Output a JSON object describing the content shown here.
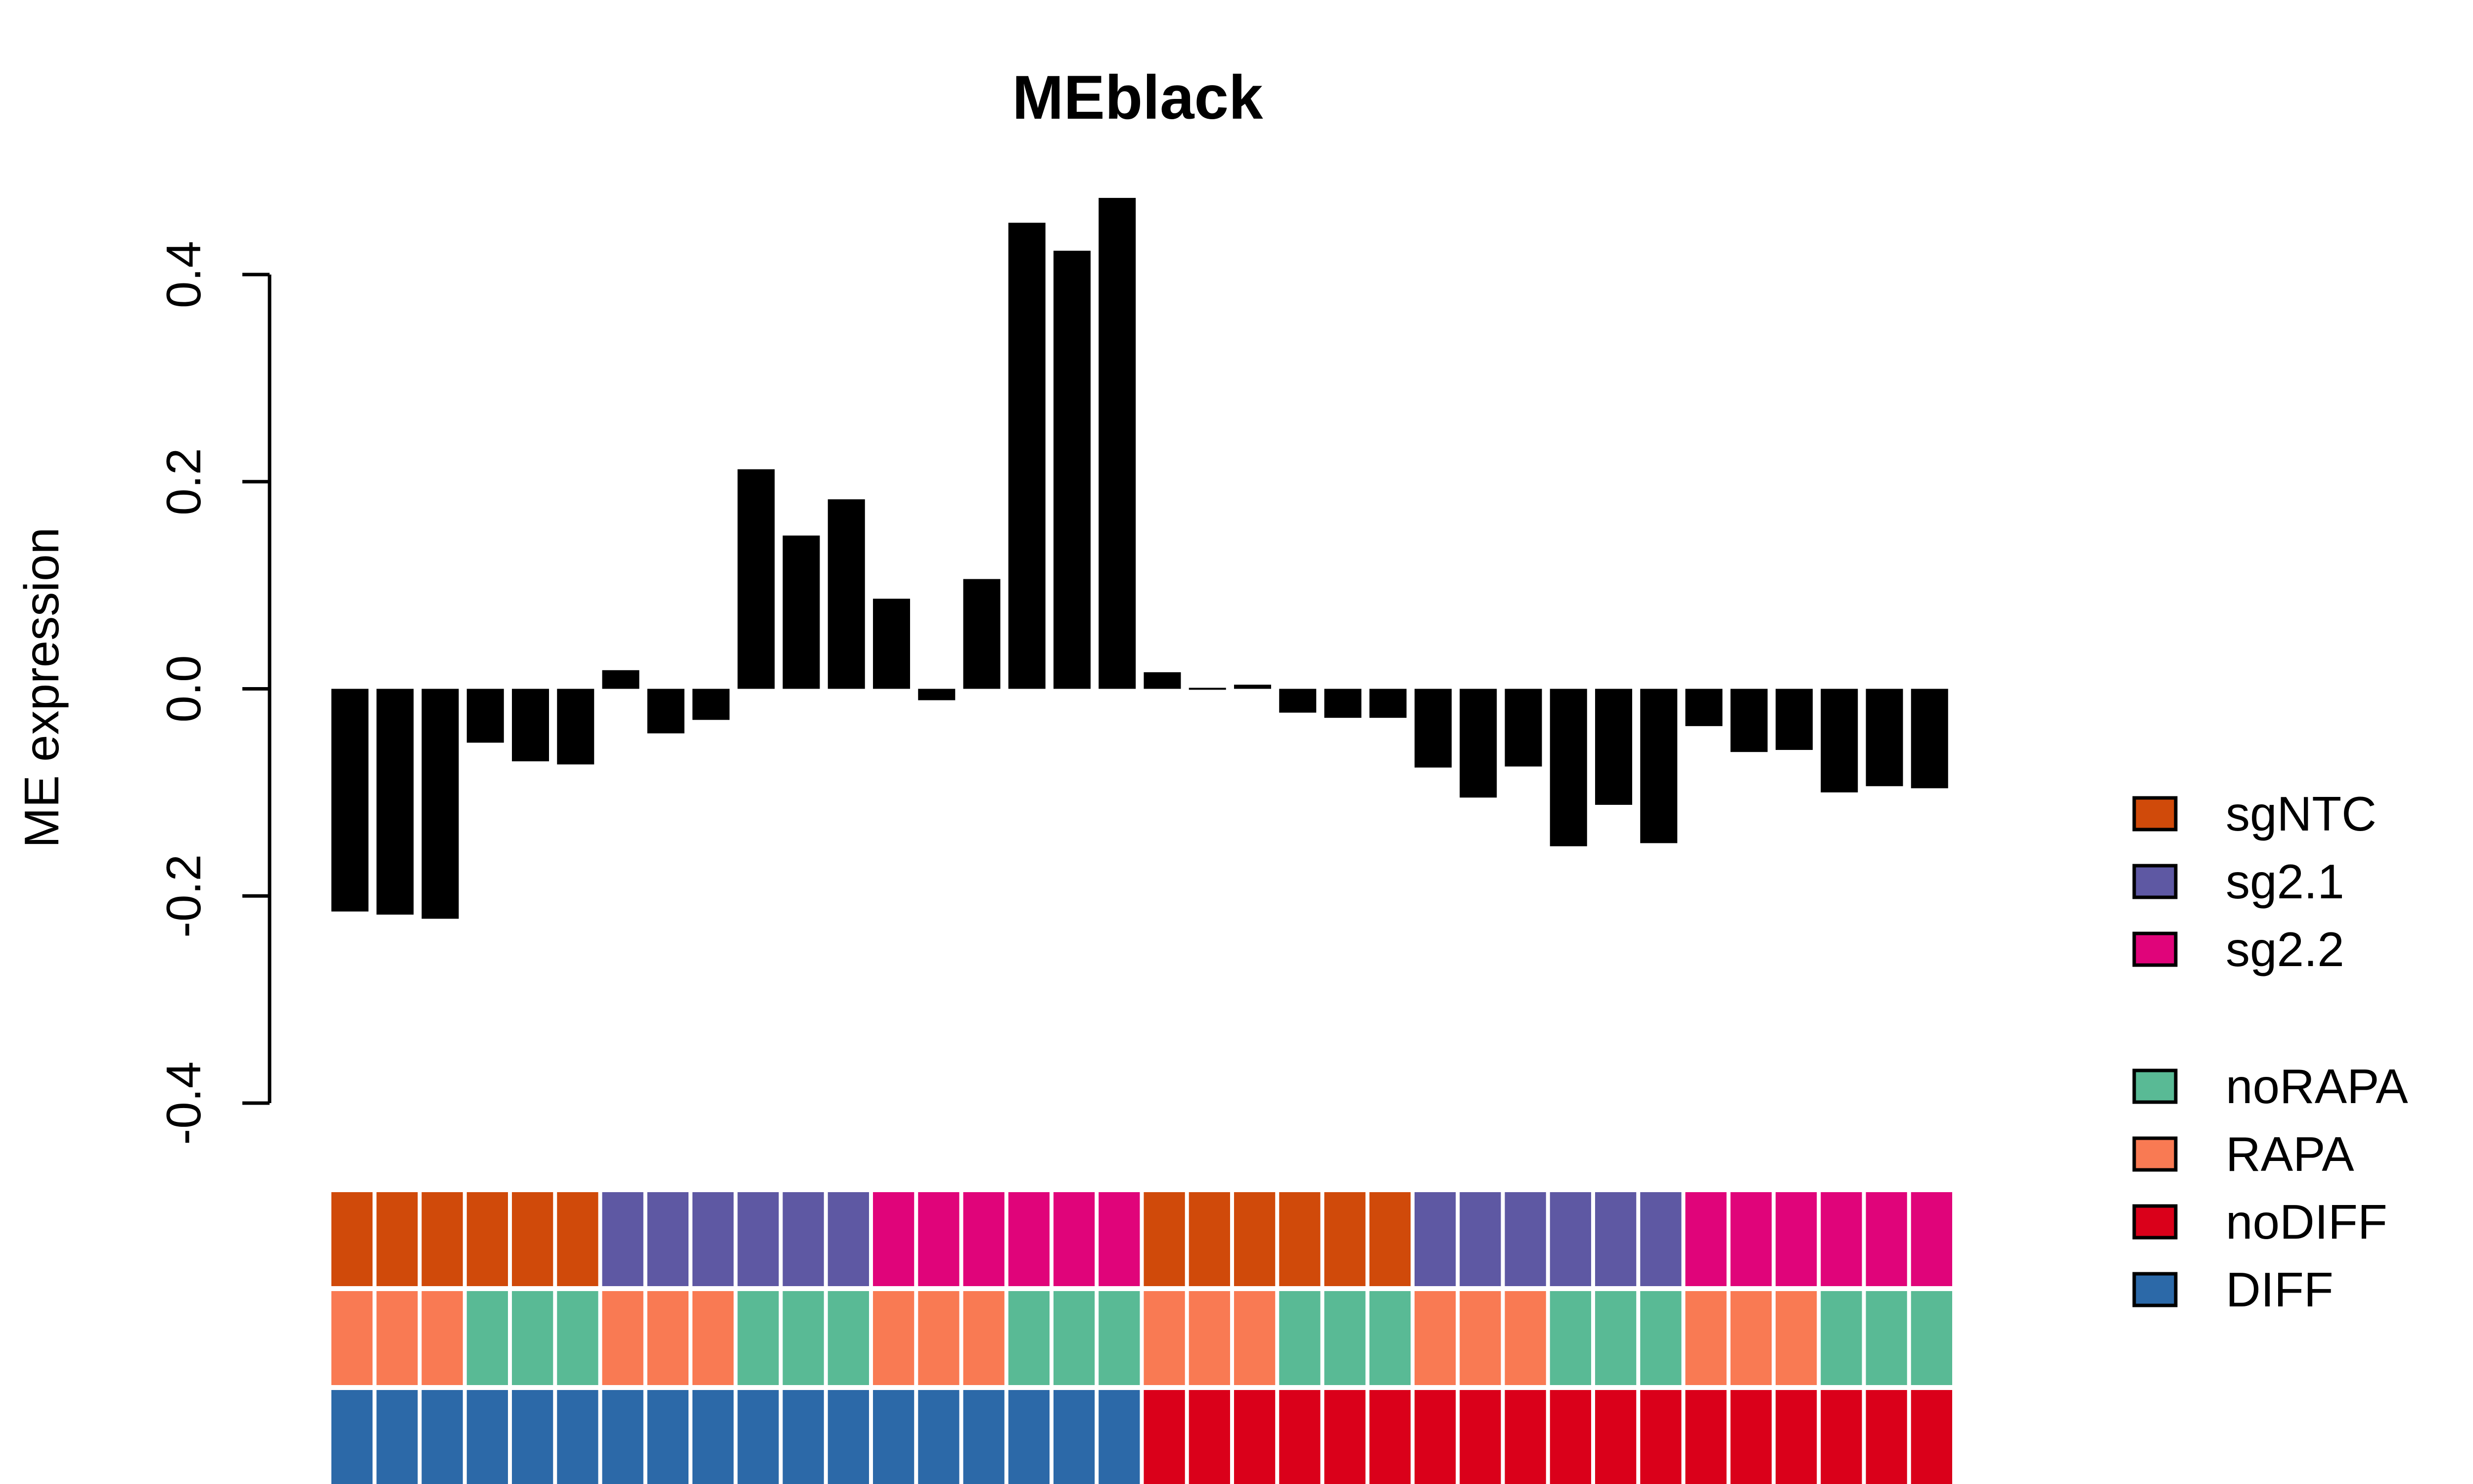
{
  "chart_data": {
    "type": "bar",
    "title": "MEblack",
    "xlabel": "",
    "ylabel": "ME expression",
    "ylim": [
      -0.4,
      0.4
    ],
    "yticks": [
      -0.4,
      -0.2,
      0.0,
      0.2,
      0.4
    ],
    "ytick_labels": [
      "-0.4",
      "-0.2",
      "0.0",
      "0.2",
      "0.4"
    ],
    "bar_color": "#000000",
    "values": [
      -0.215,
      -0.218,
      -0.222,
      -0.052,
      -0.07,
      -0.073,
      0.018,
      -0.043,
      -0.03,
      0.212,
      0.148,
      0.183,
      0.087,
      -0.011,
      0.106,
      0.45,
      0.423,
      0.474,
      0.016,
      0.001,
      0.004,
      -0.023,
      -0.028,
      -0.028,
      -0.076,
      -0.105,
      -0.075,
      -0.152,
      -0.112,
      -0.149,
      -0.036,
      -0.061,
      -0.059,
      -0.1,
      -0.094,
      -0.096
    ],
    "annotation_rows": [
      [
        "sgNTC",
        "sgNTC",
        "sgNTC",
        "sgNTC",
        "sgNTC",
        "sgNTC",
        "sg2.1",
        "sg2.1",
        "sg2.1",
        "sg2.1",
        "sg2.1",
        "sg2.1",
        "sg2.2",
        "sg2.2",
        "sg2.2",
        "sg2.2",
        "sg2.2",
        "sg2.2",
        "sgNTC",
        "sgNTC",
        "sgNTC",
        "sgNTC",
        "sgNTC",
        "sgNTC",
        "sg2.1",
        "sg2.1",
        "sg2.1",
        "sg2.1",
        "sg2.1",
        "sg2.1",
        "sg2.2",
        "sg2.2",
        "sg2.2",
        "sg2.2",
        "sg2.2",
        "sg2.2"
      ],
      [
        "RAPA",
        "RAPA",
        "RAPA",
        "noRAPA",
        "noRAPA",
        "noRAPA",
        "RAPA",
        "RAPA",
        "RAPA",
        "noRAPA",
        "noRAPA",
        "noRAPA",
        "RAPA",
        "RAPA",
        "RAPA",
        "noRAPA",
        "noRAPA",
        "noRAPA",
        "RAPA",
        "RAPA",
        "RAPA",
        "noRAPA",
        "noRAPA",
        "noRAPA",
        "RAPA",
        "RAPA",
        "RAPA",
        "noRAPA",
        "noRAPA",
        "noRAPA",
        "RAPA",
        "RAPA",
        "RAPA",
        "noRAPA",
        "noRAPA",
        "noRAPA"
      ],
      [
        "DIFF",
        "DIFF",
        "DIFF",
        "DIFF",
        "DIFF",
        "DIFF",
        "DIFF",
        "DIFF",
        "DIFF",
        "DIFF",
        "DIFF",
        "DIFF",
        "DIFF",
        "DIFF",
        "DIFF",
        "DIFF",
        "DIFF",
        "DIFF",
        "noDIFF",
        "noDIFF",
        "noDIFF",
        "noDIFF",
        "noDIFF",
        "noDIFF",
        "noDIFF",
        "noDIFF",
        "noDIFF",
        "noDIFF",
        "noDIFF",
        "noDIFF",
        "noDIFF",
        "noDIFF",
        "noDIFF",
        "noDIFF",
        "noDIFF",
        "noDIFF"
      ]
    ],
    "legend": {
      "placement": "right",
      "groups": [
        [
          {
            "label": "sgNTC",
            "color": "#D04A0A"
          },
          {
            "label": "sg2.1",
            "color": "#5E58A3"
          },
          {
            "label": "sg2.2",
            "color": "#E0047A"
          }
        ],
        [
          {
            "label": "noRAPA",
            "color": "#59BA95"
          },
          {
            "label": "RAPA",
            "color": "#F97A53"
          },
          {
            "label": "noDIFF",
            "color": "#DA001A"
          },
          {
            "label": "DIFF",
            "color": "#2C69A8"
          }
        ]
      ]
    }
  }
}
